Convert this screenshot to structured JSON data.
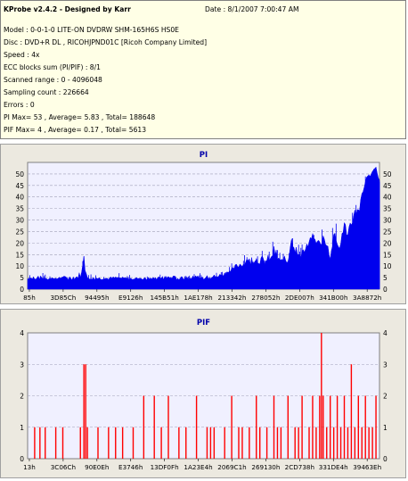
{
  "info": {
    "title": "KProbe v2.4.2 - Designed by Karr",
    "date": "Date : 8/1/2007 7:00:47 AM",
    "lines": [
      "Model : 0-0-1-0 LITE-ON DVDRW SHM-165H6S HS0E",
      "Disc : DVD+R DL , RICOHJPND01C [Ricoh Company Limited]",
      "Speed : 4x",
      "ECC blocks sum (PI/PIF) : 8/1",
      "Scanned range : 0 - 4096048",
      "Sampling count : 226664",
      "Errors : 0",
      "PI Max= 53 , Average= 5.83 , Total= 188648",
      "PIF Max= 4 , Average= 0.17 , Total= 5613"
    ]
  },
  "colors": {
    "pi_fill": "#0000ee",
    "pif_bar": "#ff0000",
    "plot_bg": "#f0f0ff",
    "title_color": "#0000aa",
    "panel_bg": "#ece9e0"
  },
  "chart_data": [
    {
      "type": "area",
      "title": "PI",
      "ylim": [
        0,
        55
      ],
      "yticks": [
        0,
        5,
        10,
        15,
        20,
        25,
        30,
        35,
        40,
        45,
        50
      ],
      "xticklabels": [
        "85h",
        "3D85Ch",
        "94495h",
        "E9126h",
        "145B51h",
        "1AE178h",
        "213342h",
        "278052h",
        "2DE007h",
        "341B00h",
        "3A8872h"
      ],
      "grid": true,
      "x": [
        0,
        0.02,
        0.05,
        0.08,
        0.11,
        0.14,
        0.155,
        0.16,
        0.165,
        0.18,
        0.22,
        0.26,
        0.3,
        0.35,
        0.4,
        0.45,
        0.5,
        0.55,
        0.57,
        0.6,
        0.62,
        0.65,
        0.68,
        0.7,
        0.72,
        0.74,
        0.75,
        0.77,
        0.79,
        0.81,
        0.82,
        0.84,
        0.86,
        0.87,
        0.89,
        0.9,
        0.91,
        0.93,
        0.94,
        0.95,
        0.96,
        0.97,
        0.98,
        0.99,
        1.0
      ],
      "values": [
        4,
        4,
        4,
        4,
        4,
        4,
        5,
        14,
        5,
        4,
        4,
        4,
        4,
        4,
        4,
        4,
        4,
        5,
        6,
        9,
        10,
        11,
        10,
        14,
        10,
        11,
        19,
        12,
        15,
        20,
        16,
        20,
        12,
        22,
        16,
        25,
        22,
        32,
        30,
        40,
        45,
        48,
        50,
        53,
        45
      ],
      "upper": [
        6,
        7,
        7,
        6,
        7,
        8,
        11,
        17,
        9,
        7,
        6,
        7,
        6,
        6,
        7,
        7,
        7,
        8,
        10,
        14,
        15,
        18,
        17,
        22,
        16,
        18,
        26,
        20,
        22,
        27,
        24,
        28,
        21,
        30,
        26,
        33,
        31,
        39,
        40,
        46,
        50,
        52,
        52,
        53,
        50
      ]
    },
    {
      "type": "bar",
      "title": "PIF",
      "ylim": [
        0,
        4
      ],
      "yticks": [
        0,
        1,
        2,
        3,
        4
      ],
      "xticklabels": [
        "13h",
        "3C06Ch",
        "90E0Eh",
        "E3746h",
        "13DF0Fh",
        "1A23E4h",
        "2069C1h",
        "269130h",
        "2CD738h",
        "331DE4h",
        "39463Eh"
      ],
      "grid": true,
      "x": [
        0.02,
        0.035,
        0.05,
        0.08,
        0.1,
        0.15,
        0.16,
        0.165,
        0.17,
        0.2,
        0.23,
        0.25,
        0.27,
        0.3,
        0.33,
        0.36,
        0.38,
        0.4,
        0.43,
        0.45,
        0.48,
        0.51,
        0.52,
        0.53,
        0.56,
        0.58,
        0.6,
        0.61,
        0.63,
        0.65,
        0.66,
        0.68,
        0.7,
        0.71,
        0.72,
        0.74,
        0.76,
        0.77,
        0.78,
        0.8,
        0.81,
        0.82,
        0.83,
        0.835,
        0.84,
        0.85,
        0.86,
        0.87,
        0.88,
        0.89,
        0.9,
        0.91,
        0.92,
        0.93,
        0.94,
        0.95,
        0.96,
        0.97,
        0.98,
        0.99
      ],
      "values": [
        1,
        1,
        1,
        1,
        1,
        1,
        3,
        3,
        1,
        1,
        1,
        1,
        1,
        1,
        2,
        2,
        1,
        2,
        1,
        1,
        2,
        1,
        1,
        1,
        1,
        2,
        1,
        1,
        1,
        2,
        1,
        1,
        2,
        1,
        1,
        2,
        1,
        1,
        2,
        1,
        2,
        1,
        2,
        4,
        2,
        1,
        2,
        1,
        2,
        1,
        2,
        1,
        3,
        1,
        2,
        1,
        2,
        1,
        1,
        2
      ]
    }
  ]
}
